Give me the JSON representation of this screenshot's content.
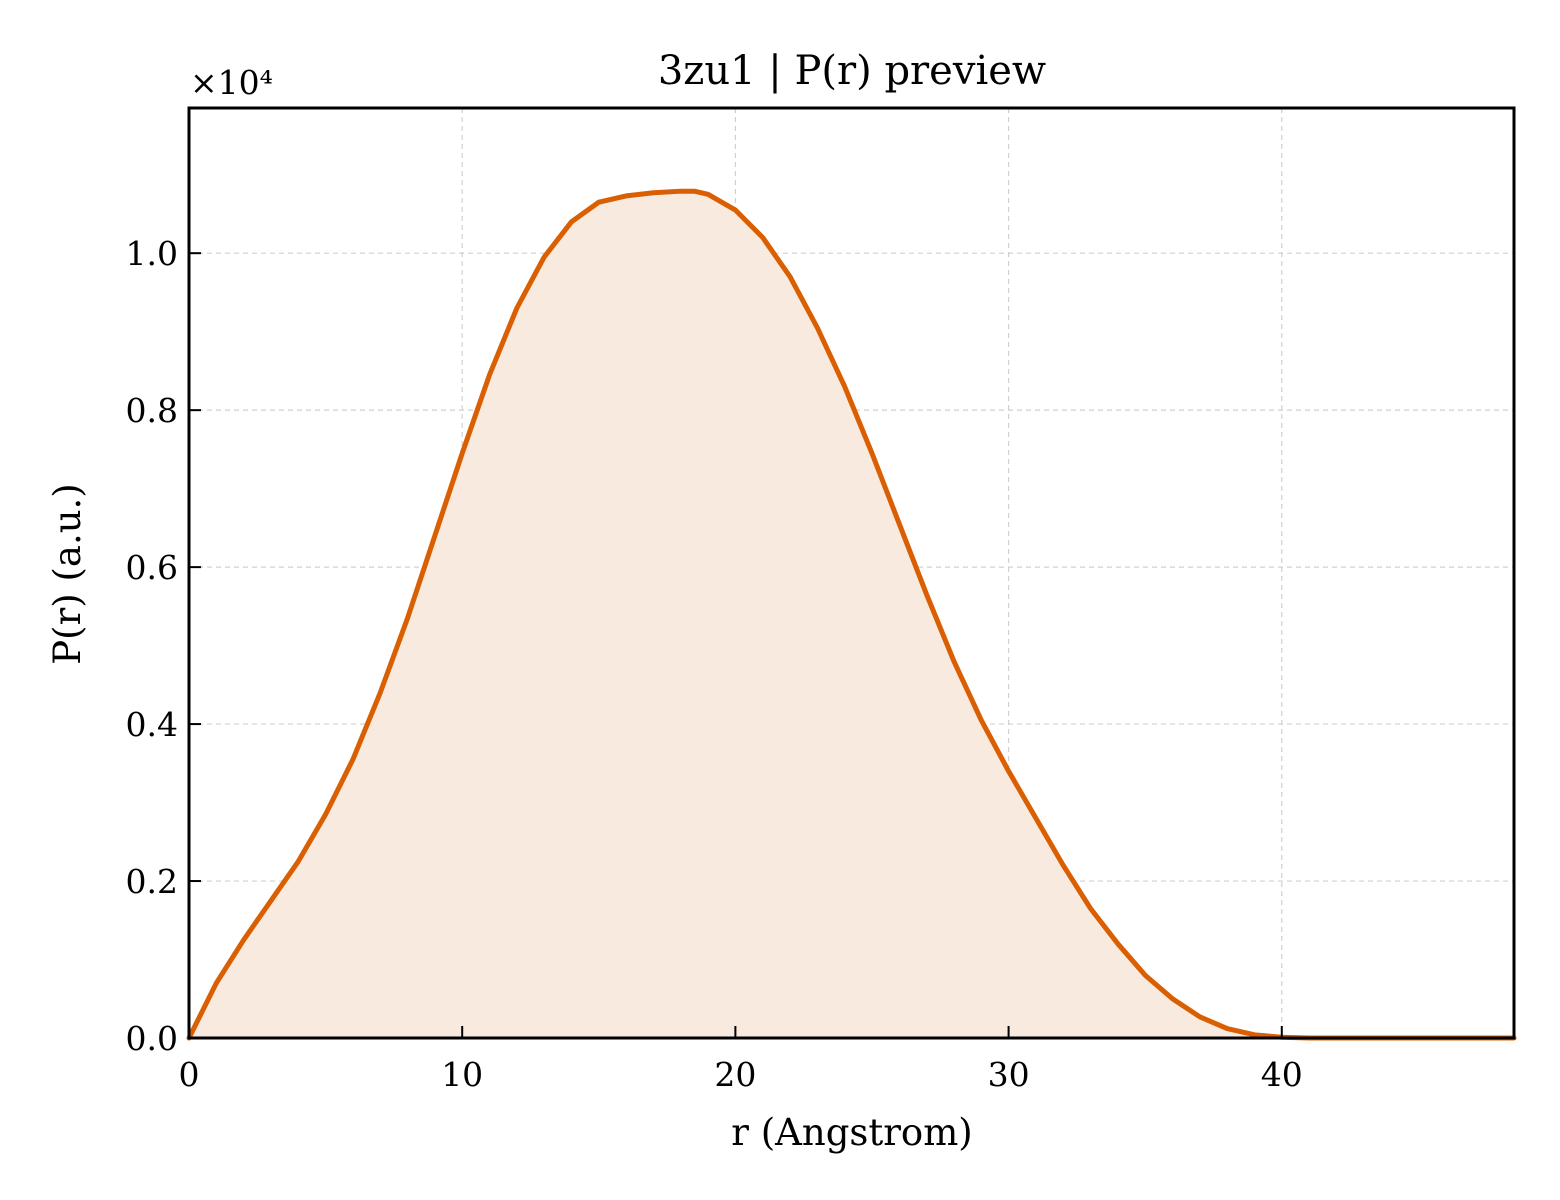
{
  "chart_data": {
    "type": "area",
    "title": "3zu1 | P(r) preview",
    "xlabel": "r (Angstrom)",
    "ylabel": "P(r) (a.u.)",
    "y_offset_label": "×10⁴",
    "xlim": [
      0,
      48.5
    ],
    "ylim": [
      0,
      1.185
    ],
    "xticks": [
      0,
      10,
      20,
      30,
      40
    ],
    "xtick_labels": [
      "0",
      "10",
      "20",
      "30",
      "40"
    ],
    "yticks": [
      0,
      0.2,
      0.4,
      0.6,
      0.8,
      1.0
    ],
    "ytick_labels": [
      "0.0",
      "0.2",
      "0.4",
      "0.6",
      "0.8",
      "1.0"
    ],
    "grid": true,
    "colors": {
      "line": "#d95f02",
      "fill": "#f9eadf"
    },
    "series": [
      {
        "x": [
          0,
          1,
          2,
          3,
          4,
          5,
          6,
          7,
          8,
          9,
          10,
          11,
          12,
          13,
          14,
          15,
          16,
          17,
          18,
          18.5,
          19,
          20,
          21,
          22,
          23,
          24,
          25,
          26,
          27,
          28,
          29,
          30,
          31,
          32,
          33,
          34,
          35,
          36,
          37,
          38,
          39,
          40,
          41,
          42,
          43,
          44,
          45,
          46,
          47,
          48.5
        ],
        "y": [
          0,
          0.07,
          0.125,
          0.175,
          0.225,
          0.285,
          0.355,
          0.44,
          0.535,
          0.64,
          0.745,
          0.845,
          0.93,
          0.995,
          1.04,
          1.065,
          1.073,
          1.077,
          1.079,
          1.079,
          1.075,
          1.055,
          1.02,
          0.97,
          0.905,
          0.83,
          0.745,
          0.655,
          0.565,
          0.48,
          0.405,
          0.34,
          0.28,
          0.22,
          0.165,
          0.12,
          0.08,
          0.05,
          0.027,
          0.012,
          0.004,
          0.001,
          0.0,
          0.0,
          0.0,
          0.0,
          0.0,
          0.0,
          0.0,
          0.0
        ]
      }
    ]
  }
}
